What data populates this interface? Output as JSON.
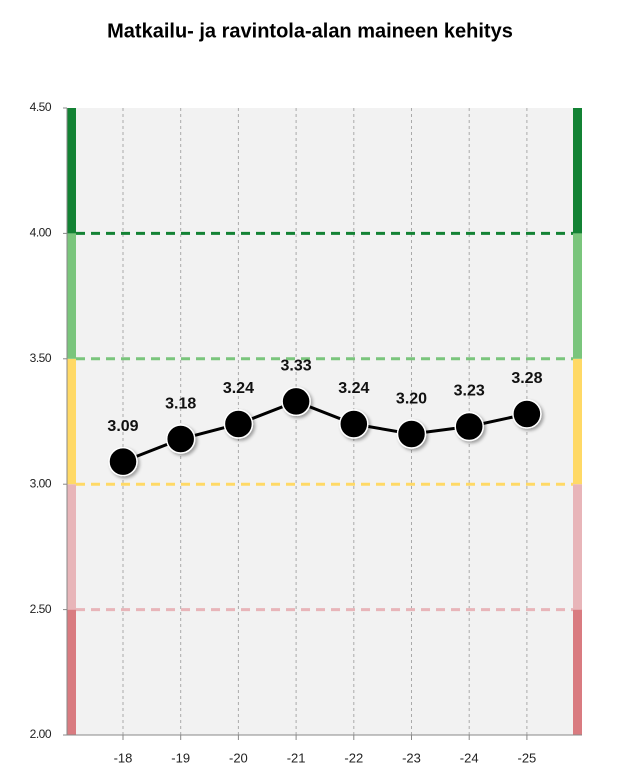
{
  "chart_data": {
    "type": "line",
    "title": "Matkailu- ja ravintola-alan maineen kehitys",
    "categories": [
      "-18",
      "-19",
      "-20",
      "-21",
      "-22",
      "-23",
      "-24",
      "-25"
    ],
    "values": [
      3.09,
      3.18,
      3.24,
      3.33,
      3.24,
      3.2,
      3.23,
      3.28
    ],
    "value_labels": [
      "3.09",
      "3.18",
      "3.24",
      "3.33",
      "3.24",
      "3.20",
      "3.23",
      "3.28"
    ],
    "color": "#000000",
    "ylim": [
      2,
      4.5
    ],
    "yticks": [
      {
        "value": 2,
        "label": "2.00"
      },
      {
        "value": 2.5,
        "label": "2.50"
      },
      {
        "value": 3,
        "label": "3.00"
      },
      {
        "value": 3.5,
        "label": "3.50"
      },
      {
        "value": 4,
        "label": "4.00"
      },
      {
        "value": 4.5,
        "label": "4.50"
      }
    ],
    "bands": [
      {
        "from": 2,
        "to": 2.5,
        "color": "#d97b80"
      },
      {
        "from": 2.5,
        "to": 3,
        "color": "#e8b5b9"
      },
      {
        "from": 3,
        "to": 3.5,
        "color": "#ffd966"
      },
      {
        "from": 3.5,
        "to": 4,
        "color": "#7ac57c"
      },
      {
        "from": 4,
        "to": 4.5,
        "color": "#138234"
      }
    ]
  }
}
